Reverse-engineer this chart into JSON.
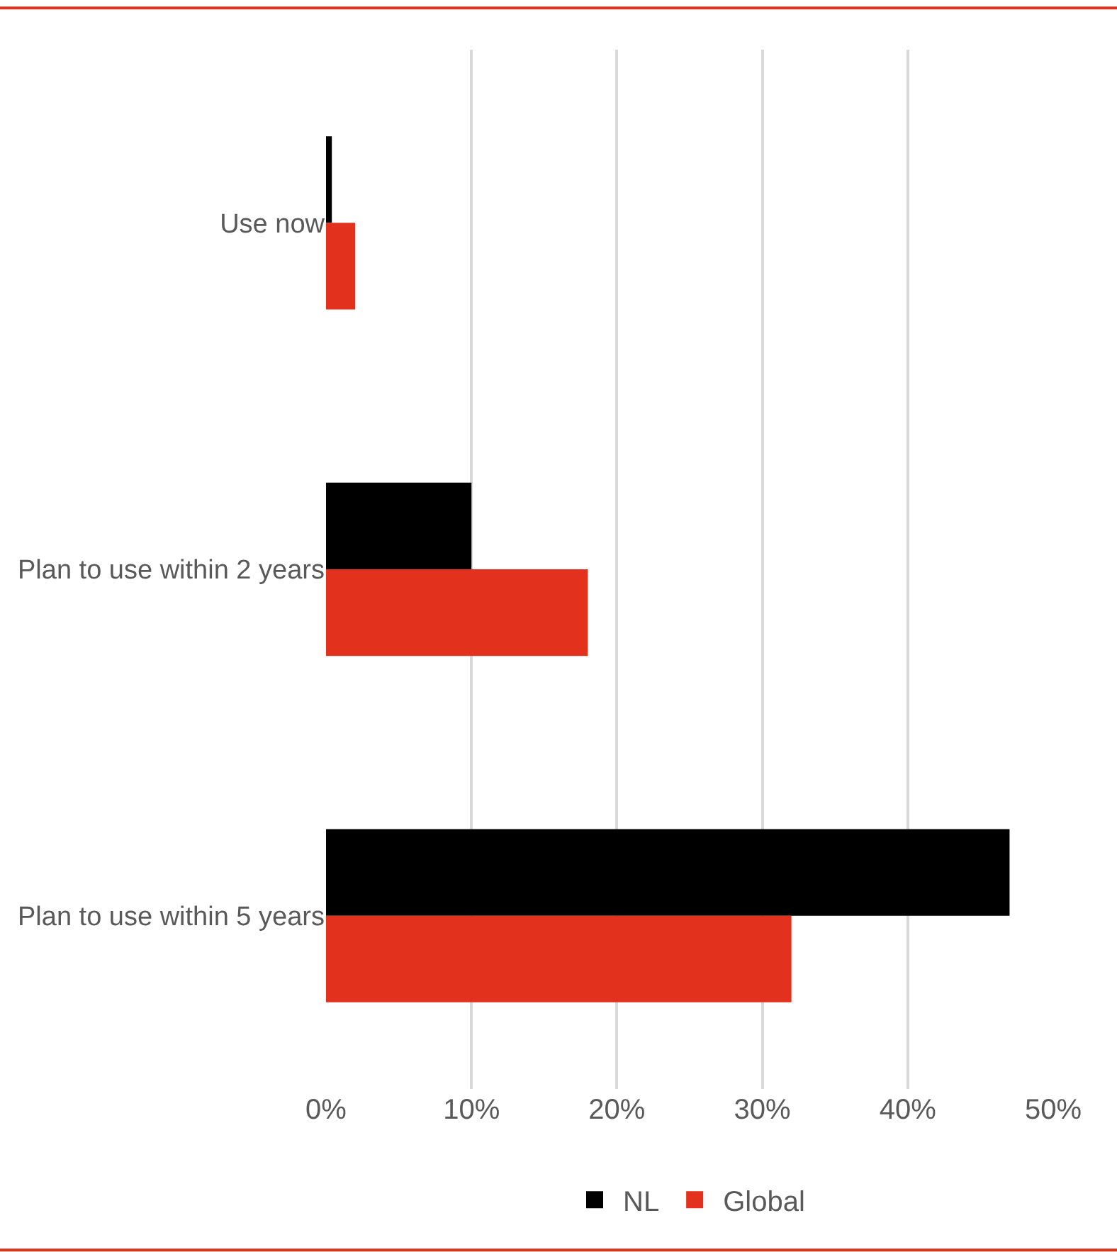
{
  "chart_data": {
    "type": "bar",
    "orientation": "horizontal",
    "categories": [
      "Use now",
      "Plan to use within 2 years",
      "Plan to use within 5 years"
    ],
    "series": [
      {
        "name": "NL",
        "color": "#000000",
        "values": [
          0.4,
          10,
          47
        ]
      },
      {
        "name": "Global",
        "color": "#e2311d",
        "values": [
          2,
          18,
          32
        ]
      }
    ],
    "xlim": [
      0,
      50
    ],
    "xticks": [
      {
        "value": 0,
        "label": "0%"
      },
      {
        "value": 10,
        "label": "10%"
      },
      {
        "value": 20,
        "label": "20%"
      },
      {
        "value": 30,
        "label": "30%"
      },
      {
        "value": 40,
        "label": "40%"
      },
      {
        "value": 50,
        "label": "50%"
      }
    ],
    "grid": "x",
    "legend": "bottom"
  }
}
